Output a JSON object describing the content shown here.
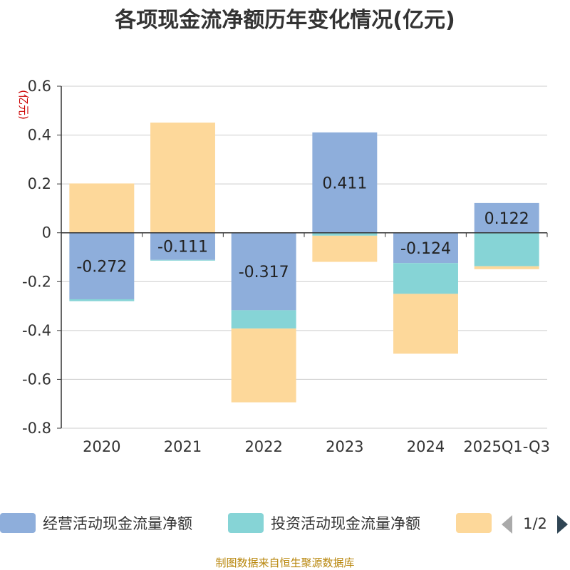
{
  "chart_data": {
    "type": "bar",
    "stacked": true,
    "title": "各项现金流净额历年变化情况(亿元)",
    "ylabel": "(亿元)",
    "ylim": [
      -0.8,
      0.6
    ],
    "yticks": [
      0.6,
      0.4,
      0.2,
      0,
      -0.2,
      -0.4,
      -0.6,
      -0.8
    ],
    "ytick_labels": [
      "0.6",
      "0.4",
      "0.2",
      "0",
      "-0.2",
      "-0.4",
      "-0.6",
      "-0.8"
    ],
    "categories": [
      "2020",
      "2021",
      "2022",
      "2023",
      "2024",
      "2025Q1-Q3"
    ],
    "series": [
      {
        "name": "经营活动现金流量净额",
        "color": "#8eaedb",
        "values": [
          -0.272,
          -0.111,
          -0.317,
          0.411,
          -0.124,
          0.122
        ],
        "labels": [
          "-0.272",
          "-0.111",
          "-0.317",
          "0.411",
          "-0.124",
          "0.122"
        ]
      },
      {
        "name": "投资活动现金流量净额",
        "color": "#86d4d6",
        "values": [
          -0.008,
          -0.003,
          -0.075,
          -0.012,
          -0.126,
          -0.137
        ]
      },
      {
        "name": "",
        "color": "#fdd89a",
        "values": [
          0.202,
          0.451,
          -0.302,
          -0.107,
          -0.245,
          -0.012
        ]
      }
    ],
    "legend": {
      "position": "bottom",
      "page": "1/2"
    },
    "grid": true
  },
  "source": "制图数据来自恒生聚源数据库"
}
